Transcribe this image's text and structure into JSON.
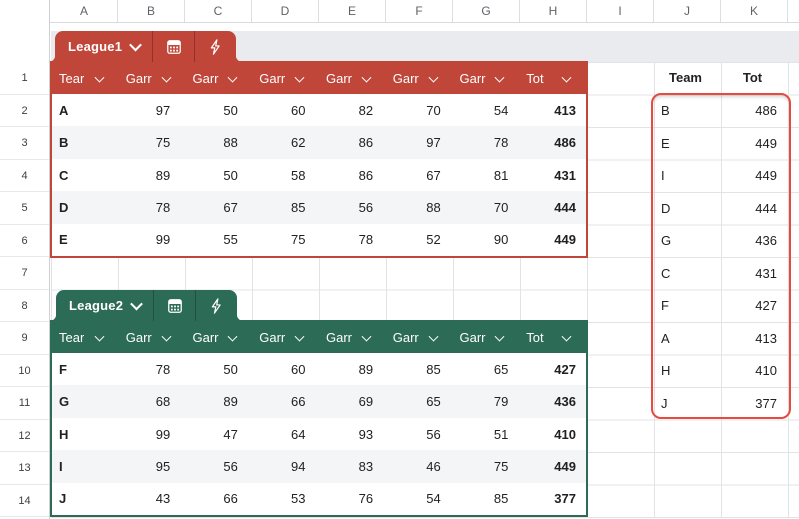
{
  "sheet": {
    "column_letters": [
      "A",
      "B",
      "C",
      "D",
      "E",
      "F",
      "G",
      "H",
      "I",
      "J",
      "K"
    ],
    "row_numbers": [
      "1",
      "2",
      "3",
      "4",
      "5",
      "6",
      "7",
      "8",
      "9",
      "10",
      "11",
      "12",
      "13",
      "14"
    ]
  },
  "league1": {
    "tab_label": "League1",
    "accent_color": "#C0463A",
    "column_headers": [
      "Tear",
      "Garr",
      "Garr",
      "Garr",
      "Garr",
      "Garr",
      "Garr",
      "Tot"
    ],
    "rows": [
      {
        "team": "A",
        "games": [
          97,
          50,
          60,
          82,
          70,
          54
        ],
        "total": 413
      },
      {
        "team": "B",
        "games": [
          75,
          88,
          62,
          86,
          97,
          78
        ],
        "total": 486
      },
      {
        "team": "C",
        "games": [
          89,
          50,
          58,
          86,
          67,
          81
        ],
        "total": 431
      },
      {
        "team": "D",
        "games": [
          78,
          67,
          85,
          56,
          88,
          70
        ],
        "total": 444
      },
      {
        "team": "E",
        "games": [
          99,
          55,
          75,
          78,
          52,
          90
        ],
        "total": 449
      }
    ]
  },
  "league2": {
    "tab_label": "League2",
    "accent_color": "#2C6B55",
    "column_headers": [
      "Tear",
      "Garr",
      "Garr",
      "Garr",
      "Garr",
      "Garr",
      "Garr",
      "Tot"
    ],
    "rows": [
      {
        "team": "F",
        "games": [
          78,
          50,
          60,
          89,
          85,
          65
        ],
        "total": 427
      },
      {
        "team": "G",
        "games": [
          68,
          89,
          66,
          69,
          65,
          79
        ],
        "total": 436
      },
      {
        "team": "H",
        "games": [
          99,
          47,
          64,
          93,
          56,
          51
        ],
        "total": 410
      },
      {
        "team": "I",
        "games": [
          95,
          56,
          94,
          83,
          46,
          75
        ],
        "total": 449
      },
      {
        "team": "J",
        "games": [
          43,
          66,
          53,
          76,
          54,
          85
        ],
        "total": 377
      }
    ]
  },
  "summary": {
    "team_header": "Team",
    "total_header": "Tot",
    "highlight_border_color": "#E84A3D",
    "rows": [
      {
        "team": "B",
        "total": 486
      },
      {
        "team": "E",
        "total": 449
      },
      {
        "team": "I",
        "total": 449
      },
      {
        "team": "D",
        "total": 444
      },
      {
        "team": "G",
        "total": 436
      },
      {
        "team": "C",
        "total": 431
      },
      {
        "team": "F",
        "total": 427
      },
      {
        "team": "A",
        "total": 413
      },
      {
        "team": "H",
        "total": 410
      },
      {
        "team": "J",
        "total": 377
      }
    ]
  },
  "icons": {
    "tab_chevron": "chevron-down",
    "header_chevron": "chevron-down",
    "table_button_icon": "table-grid",
    "bolt_button_icon": "lightning-bolt"
  }
}
